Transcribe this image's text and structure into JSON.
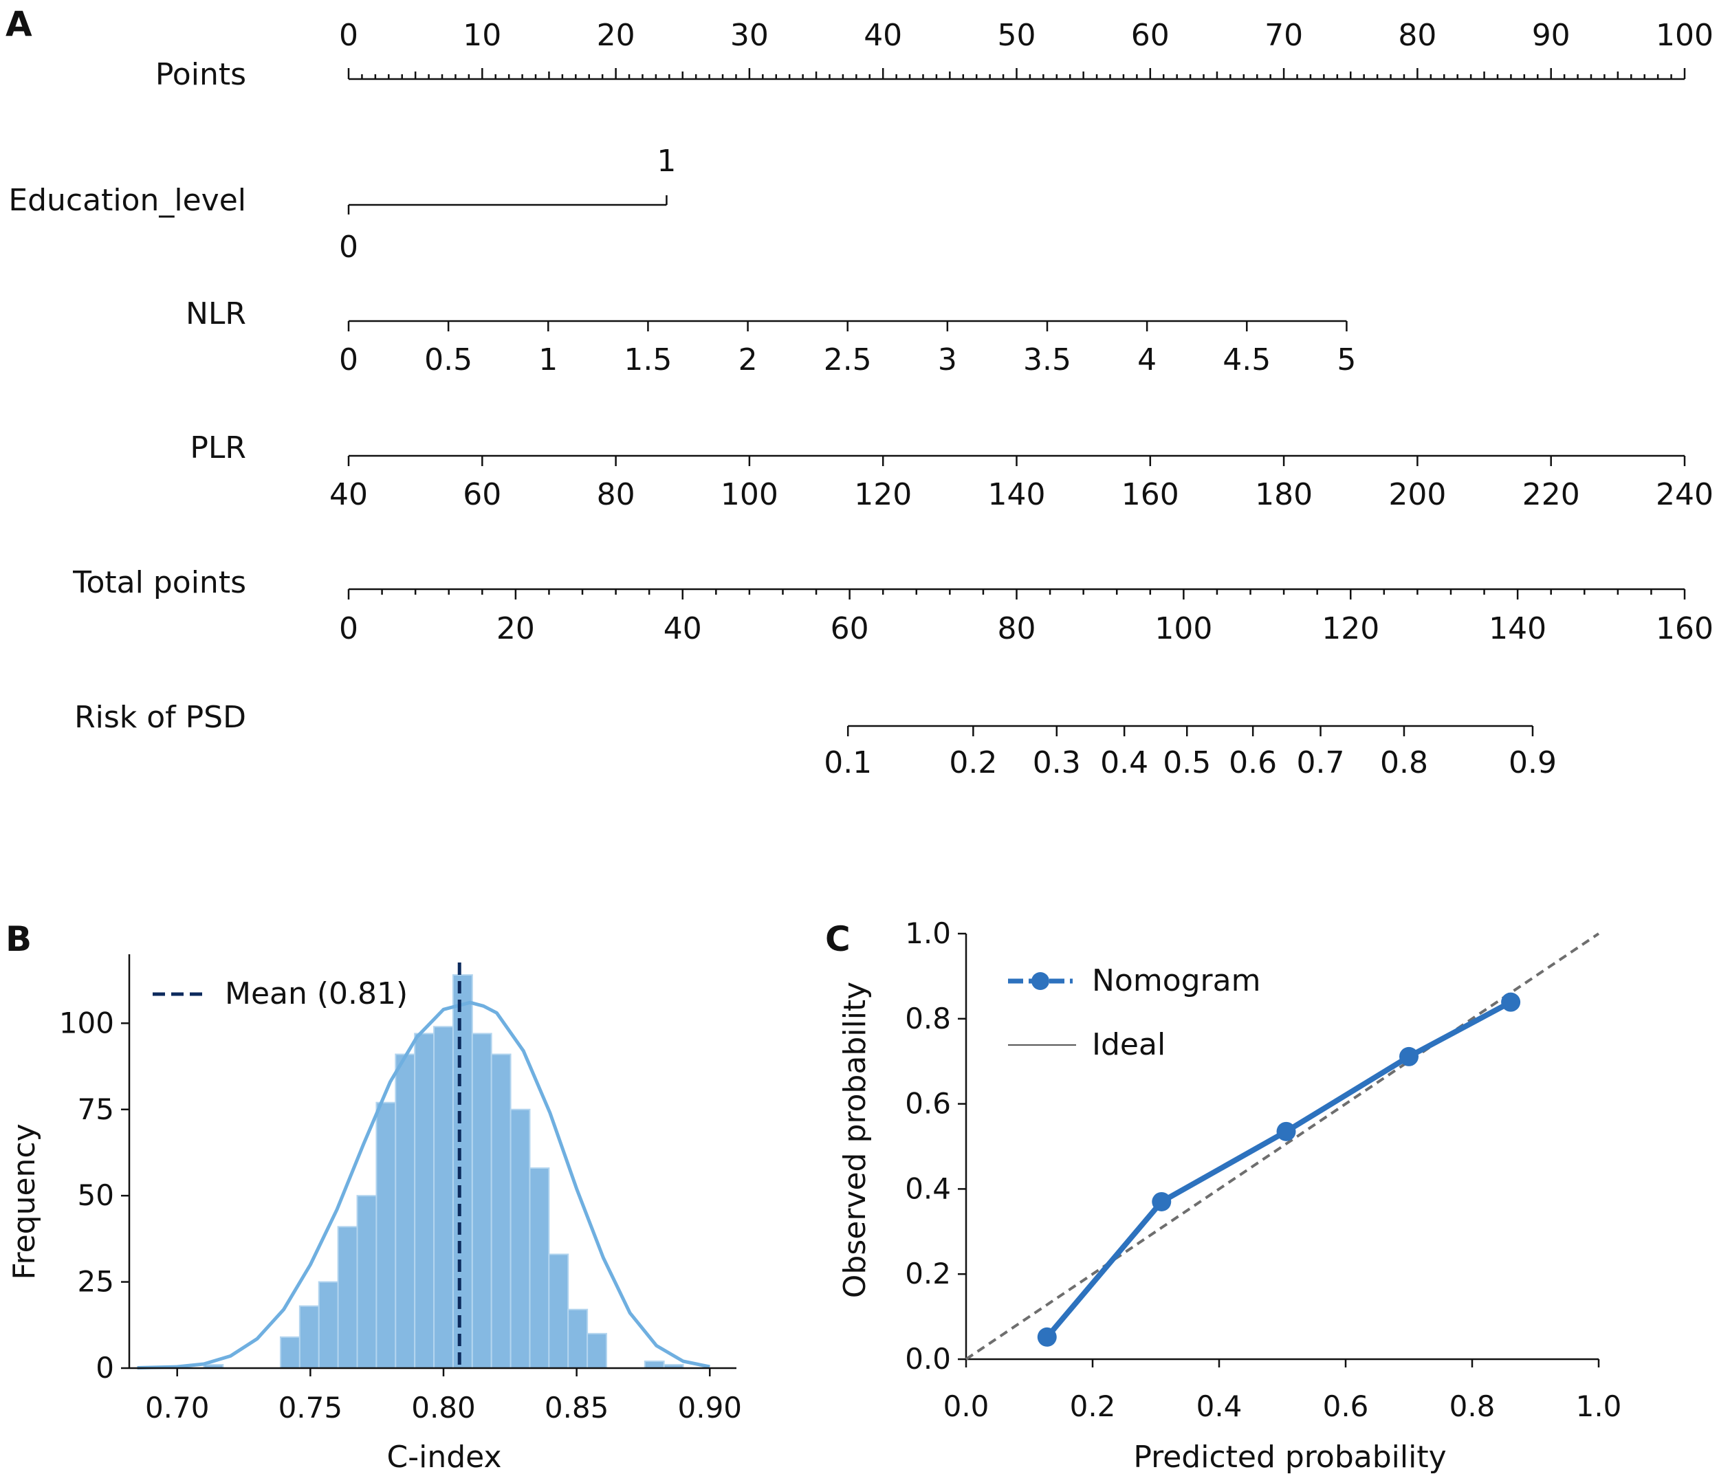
{
  "panels": {
    "a": {
      "letter": "A"
    },
    "b": {
      "letter": "B"
    },
    "c": {
      "letter": "C"
    }
  },
  "chart_data": [
    {
      "panel": "A",
      "type": "nomogram",
      "scales": [
        {
          "name": "Points",
          "domain": [
            0,
            100
          ],
          "tick_labels": [
            "0",
            "10",
            "20",
            "30",
            "40",
            "50",
            "60",
            "70",
            "80",
            "90",
            "100"
          ],
          "tick_values": [
            0,
            10,
            20,
            30,
            40,
            50,
            60,
            70,
            80,
            90,
            100
          ],
          "minor_step": 1,
          "medium_step": 5,
          "labels_above": true,
          "points_range": [
            0,
            100
          ]
        },
        {
          "name": "Education_level",
          "categorical": true,
          "levels": [
            {
              "label": "0",
              "points": 0,
              "label_position": "below"
            },
            {
              "label": "1",
              "points": 23.8,
              "label_position": "above"
            }
          ]
        },
        {
          "name": "NLR",
          "domain": [
            0,
            5
          ],
          "tick_labels": [
            "0",
            "0.5",
            "1",
            "1.5",
            "2",
            "2.5",
            "3",
            "3.5",
            "4",
            "4.5",
            "5"
          ],
          "tick_values": [
            0,
            0.5,
            1,
            1.5,
            2,
            2.5,
            3,
            3.5,
            4,
            4.5,
            5
          ],
          "points_range": [
            0,
            74.7
          ]
        },
        {
          "name": "PLR",
          "domain": [
            40,
            240
          ],
          "tick_labels": [
            "40",
            "60",
            "80",
            "100",
            "120",
            "140",
            "160",
            "180",
            "200",
            "220",
            "240"
          ],
          "tick_values": [
            40,
            60,
            80,
            100,
            120,
            140,
            160,
            180,
            200,
            220,
            240
          ],
          "points_range": [
            0,
            100
          ]
        },
        {
          "name": "Total points",
          "domain": [
            0,
            160
          ],
          "tick_labels": [
            "0",
            "20",
            "40",
            "60",
            "80",
            "100",
            "120",
            "140",
            "160"
          ],
          "tick_values": [
            0,
            20,
            40,
            60,
            80,
            100,
            120,
            140,
            160
          ],
          "minor_step": 4,
          "points_range": [
            0,
            100
          ]
        },
        {
          "name": "Risk of PSD",
          "tick_labels": [
            "0.1",
            "0.2",
            "0.3",
            "0.4",
            "0.5",
            "0.6",
            "0.7",
            "0.8",
            "0.9"
          ],
          "total_points_at_ticks": [
            59.8,
            74.8,
            84.8,
            92.9,
            100.4,
            108.3,
            116.4,
            126.4,
            141.8
          ]
        }
      ]
    },
    {
      "panel": "B",
      "type": "histogram",
      "xlabel": "C-index",
      "ylabel": "Frequency",
      "xlim": [
        0.682,
        0.91
      ],
      "ylim": [
        0,
        120
      ],
      "x_ticks": [
        "0.70",
        "0.75",
        "0.80",
        "0.85",
        "0.90"
      ],
      "x_tick_values": [
        0.7,
        0.75,
        0.8,
        0.85,
        0.9
      ],
      "y_ticks": [
        "0",
        "25",
        "50",
        "75",
        "100"
      ],
      "y_tick_values": [
        0,
        25,
        50,
        75,
        100
      ],
      "bin_start": 0.6884,
      "bin_width": 0.0072,
      "bin_counts": [
        0,
        0,
        0,
        1,
        0,
        0,
        0,
        9,
        18,
        25,
        41,
        50,
        77,
        91,
        97,
        99,
        114,
        97,
        91,
        75,
        58,
        33,
        17,
        10,
        0,
        0,
        2,
        1
      ],
      "kde_x": [
        0.685,
        0.7,
        0.71,
        0.72,
        0.73,
        0.74,
        0.75,
        0.76,
        0.77,
        0.78,
        0.79,
        0.8,
        0.81,
        0.815,
        0.82,
        0.83,
        0.84,
        0.85,
        0.86,
        0.87,
        0.88,
        0.89,
        0.9
      ],
      "kde_y": [
        0.1,
        0.4,
        1.2,
        3.5,
        8.5,
        17,
        30,
        46,
        65,
        83,
        96,
        104,
        106,
        105,
        103,
        92,
        74,
        52,
        32,
        16,
        6.5,
        2,
        0.4
      ],
      "mean": 0.806,
      "mean_label": "Mean (0.81)",
      "colors": {
        "bar": "#85b9e2",
        "bar_edge": "#b3d5ef",
        "kde": "#6fafe0",
        "mean_line": "#0c2a5c"
      }
    },
    {
      "panel": "C",
      "type": "line",
      "xlabel": "Predicted probability",
      "ylabel": "Observed probability",
      "xlim": [
        0,
        1
      ],
      "ylim": [
        0,
        1
      ],
      "x_ticks": [
        "0.0",
        "0.2",
        "0.4",
        "0.6",
        "0.8",
        "1.0"
      ],
      "x_tick_values": [
        0,
        0.2,
        0.4,
        0.6,
        0.8,
        1.0
      ],
      "y_ticks": [
        "0.0",
        "0.2",
        "0.4",
        "0.6",
        "0.8",
        "1.0"
      ],
      "y_tick_values": [
        0,
        0.2,
        0.4,
        0.6,
        0.8,
        1.0
      ],
      "series": [
        {
          "name": "Nomogram",
          "x": [
            0.128,
            0.309,
            0.506,
            0.7,
            0.861
          ],
          "y": [
            0.052,
            0.37,
            0.535,
            0.711,
            0.839
          ],
          "color": "#2d72be",
          "marker": "circle"
        },
        {
          "name": "Ideal",
          "x": [
            0,
            1
          ],
          "y": [
            0,
            1
          ],
          "color": "#6e6e6e",
          "line_style": "dashed"
        }
      ],
      "legend_position": "top-left"
    }
  ]
}
